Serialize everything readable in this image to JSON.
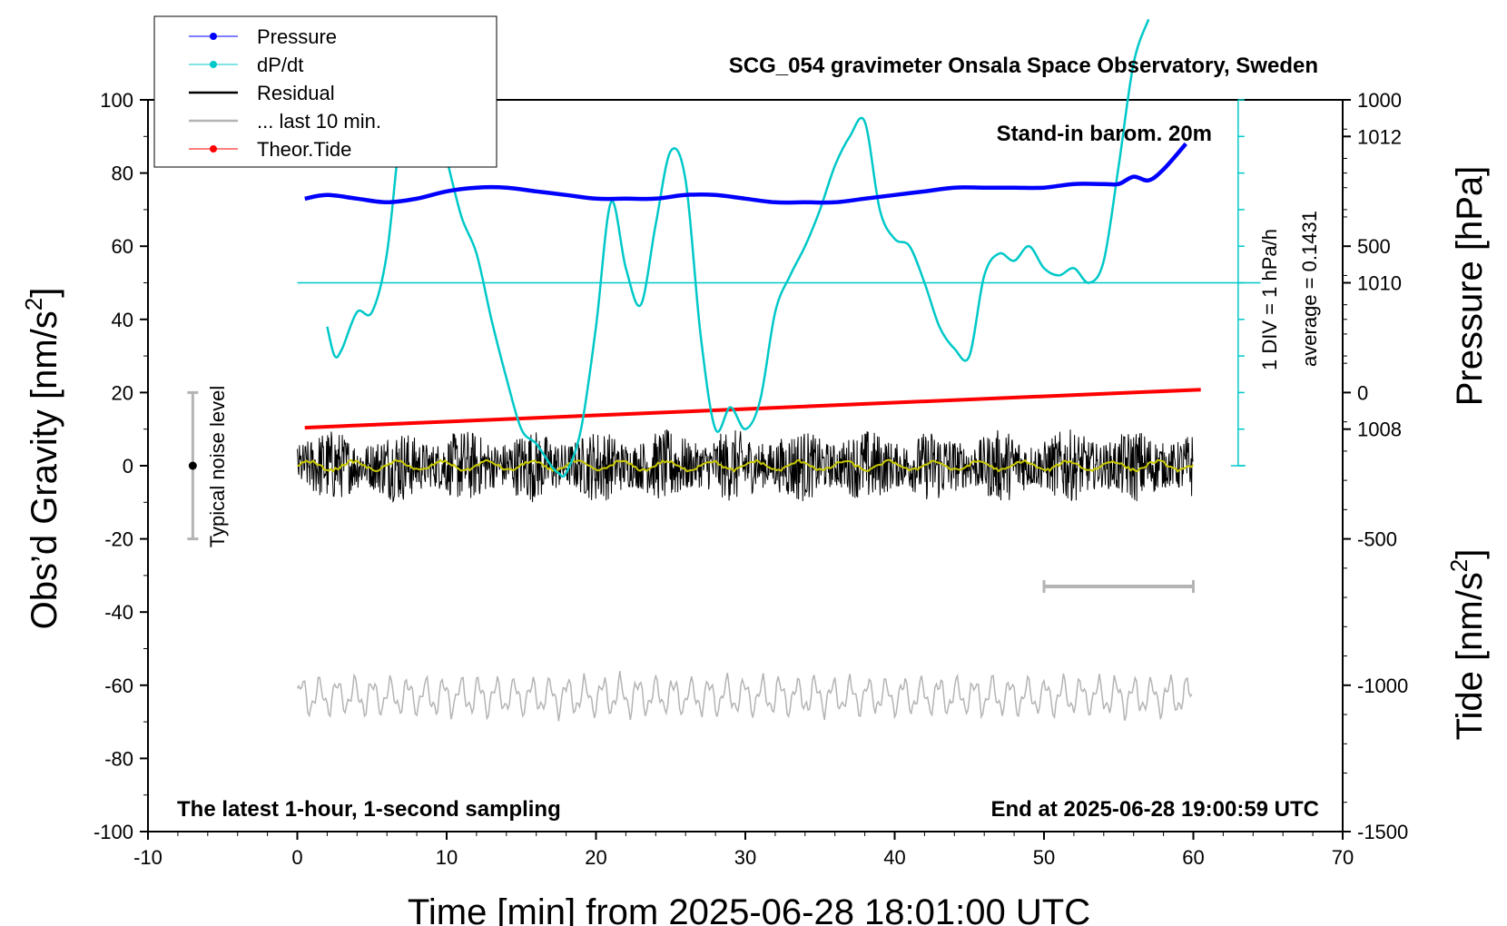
{
  "title": "SCG_054 gravimeter Onsala Space Observatory, Sweden",
  "barometer_note": "Stand-in barom. 20m",
  "latest_note": "The latest 1-hour, 1-second sampling",
  "end_note": "End at 2025-06-28 19:00:59 UTC",
  "noise_label": "Typical noise level",
  "div_label": "1 DIV = 1 hPa/h",
  "average_label": "average = 0.1431",
  "legend": [
    {
      "label": "Pressure",
      "color": "#0000ff",
      "marker": "dot"
    },
    {
      "label": "dP/dt",
      "color": "#00c8c8",
      "marker": "dot"
    },
    {
      "label": "Residual",
      "color": "#000000",
      "marker": "none"
    },
    {
      "label": "... last 10 min.",
      "color": "#b4b4b4",
      "marker": "none"
    },
    {
      "label": "Theor.Tide",
      "color": "#ff0000",
      "marker": "dot"
    }
  ],
  "chart_data": {
    "type": "line",
    "title": "SCG_054 gravimeter Onsala Space Observatory, Sweden",
    "xlabel": "Time [min] from 2025-06-28 18:01:00 UTC",
    "ylabel": "Obs’d Gravity [nm/s2]",
    "y2label_pressure": "Pressure [hPa]",
    "y2label_tide": "Tide [nm/s2]",
    "xlim": [
      -10,
      70
    ],
    "ylim": [
      -100,
      100
    ],
    "x_ticks": [
      "-10",
      "0",
      "10",
      "20",
      "30",
      "40",
      "50",
      "60",
      "70"
    ],
    "y_ticks": [
      "100",
      "80",
      "60",
      "40",
      "20",
      "0",
      "-20",
      "-40",
      "-60",
      "-80",
      "-100"
    ],
    "pressure_ticks": [
      "1012",
      "1010",
      "1008"
    ],
    "tide_ticks": [
      "1000",
      "500",
      "0",
      "-500",
      "-1000",
      "-1500"
    ],
    "pressure_axis": {
      "ref_value": 1010,
      "ref_gravity": 50,
      "hpa_per_20": 1
    },
    "tide_axis": {
      "ylim": [
        -1500,
        1000
      ]
    },
    "series": [
      {
        "name": "Pressure",
        "color": "#0000ff",
        "units": "hPa",
        "x": [
          0.5,
          2,
          4,
          6,
          8,
          10,
          12,
          14,
          16,
          18,
          20,
          22,
          24,
          26,
          28,
          30,
          32,
          34,
          36,
          38,
          40,
          42,
          44,
          46,
          48,
          50,
          52,
          54,
          55,
          56,
          57,
          58,
          59.5
        ],
        "y": [
          1011.15,
          1011.2,
          1011.15,
          1011.1,
          1011.15,
          1011.25,
          1011.3,
          1011.3,
          1011.25,
          1011.2,
          1011.15,
          1011.15,
          1011.15,
          1011.2,
          1011.2,
          1011.15,
          1011.1,
          1011.1,
          1011.1,
          1011.15,
          1011.2,
          1011.25,
          1011.3,
          1011.3,
          1011.3,
          1011.3,
          1011.35,
          1011.35,
          1011.35,
          1011.45,
          1011.4,
          1011.55,
          1011.9
        ]
      },
      {
        "name": "dP/dt",
        "color": "#00c8c8",
        "units": "hPa/h (1 DIV = 1 hPa/h)",
        "x": [
          2,
          2.5,
          3,
          4,
          5,
          6,
          7,
          8,
          9,
          10,
          11,
          12,
          13,
          14,
          15,
          16,
          17,
          17.5,
          18,
          19,
          20,
          21,
          22,
          23,
          24,
          25,
          26,
          27,
          28,
          29,
          30,
          31,
          32,
          33,
          34,
          35,
          36,
          37,
          38,
          39,
          40,
          41,
          42,
          43,
          44,
          45,
          46,
          47,
          48,
          49,
          50,
          51,
          52,
          53,
          54,
          55,
          56,
          57
        ],
        "y": [
          -0.6,
          -1.0,
          -0.9,
          -0.4,
          -0.4,
          0.4,
          2.2,
          2.8,
          2.6,
          1.7,
          0.9,
          0.4,
          -0.5,
          -1.3,
          -2.0,
          -2.2,
          -2.5,
          -2.6,
          -2.6,
          -2.0,
          -0.6,
          1.1,
          0.2,
          -0.3,
          0.8,
          1.8,
          1.4,
          -0.7,
          -2.0,
          -1.7,
          -2.0,
          -1.6,
          -0.4,
          0.1,
          0.5,
          1.0,
          1.6,
          2.0,
          2.2,
          1.0,
          0.6,
          0.5,
          0.0,
          -0.6,
          -0.9,
          -1.0,
          0.1,
          0.4,
          0.3,
          0.5,
          0.2,
          0.1,
          0.2,
          0.0,
          0.3,
          1.6,
          3.0,
          3.6
        ]
      },
      {
        "name": "Residual",
        "color": "#000000",
        "units": "nm/s2",
        "x_range": [
          0,
          60
        ],
        "amplitude_p2p": 20,
        "description_visible": "noisy trace centred on 0"
      },
      {
        "name": "Residual (smoothed)",
        "color": "#c8c800",
        "units": "nm/s2",
        "x_range": [
          0,
          60
        ],
        "value": 0
      },
      {
        "name": "... last 10 min.",
        "color": "#b4b4b4",
        "units": "nm/s2",
        "x_range": [
          0,
          60
        ],
        "center": -63,
        "amplitude_p2p": 14
      },
      {
        "name": "Theor.Tide",
        "color": "#ff0000",
        "units": "nm/s2",
        "x": [
          0.5,
          60.5
        ],
        "y": [
          -120,
          10
        ]
      }
    ],
    "noise_level_bar": {
      "x": -7,
      "y_min": -20,
      "y_max": 20,
      "center": 0
    },
    "last10_marker": {
      "x_min": 50,
      "x_max": 60,
      "y": -33
    },
    "grid": false,
    "legend_position": "top-left"
  }
}
